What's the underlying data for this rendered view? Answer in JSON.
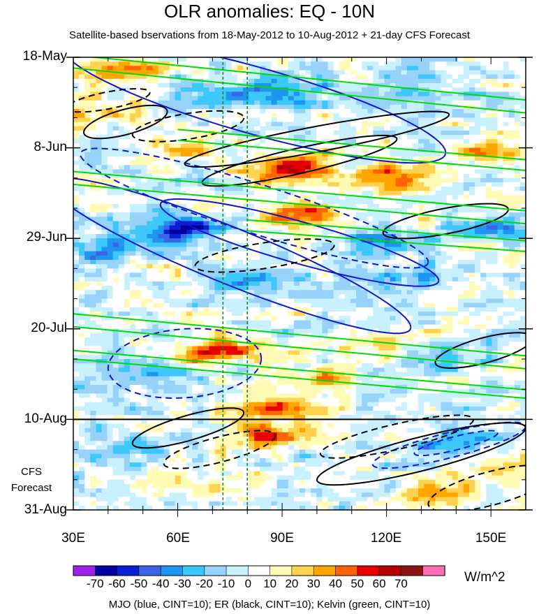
{
  "chart_data": {
    "type": "heatmap",
    "title": "OLR anomalies: EQ - 10N",
    "subtitle": "Satellite-based bservations from 18-May-2012 to 10-Aug-2012 + 21-day CFS Forecast",
    "x_axis": {
      "ticks": [
        {
          "value": 30,
          "label": "30E"
        },
        {
          "value": 60,
          "label": "60E"
        },
        {
          "value": 90,
          "label": "90E"
        },
        {
          "value": 120,
          "label": "120E"
        },
        {
          "value": 150,
          "label": "150E"
        }
      ],
      "range": [
        30,
        160
      ],
      "unit": "degrees longitude east"
    },
    "y_axis": {
      "ticks": [
        {
          "value": 0,
          "label": "18-May"
        },
        {
          "value": 21,
          "label": "8-Jun"
        },
        {
          "value": 42,
          "label": "29-Jun"
        },
        {
          "value": 63,
          "label": "20-Jul"
        },
        {
          "value": 84,
          "label": "10-Aug"
        },
        {
          "value": 105,
          "label": "31-Aug"
        }
      ],
      "range": [
        0,
        105
      ],
      "unit": "days since 18-May-2012"
    },
    "forecast_label_lines": [
      "CFS",
      "Forecast"
    ],
    "forecast_start_day": 84,
    "reference_lines_lon": [
      73,
      80
    ],
    "colorbar": {
      "levels": [
        -70,
        -60,
        -50,
        -40,
        -30,
        -20,
        -10,
        0,
        10,
        20,
        30,
        40,
        50,
        60,
        70
      ],
      "labels": [
        "-70",
        "-60",
        "-50",
        "-40",
        "-30",
        "-20",
        "-10",
        "0",
        "10",
        "20",
        "30",
        "40",
        "50",
        "60",
        "70"
      ],
      "colors": [
        "#a020f0",
        "#0000a0",
        "#0a1ed2",
        "#3c64e6",
        "#1e96f0",
        "#3cc8fa",
        "#96d2fa",
        "#c8f0ff",
        "#ffffff",
        "#fffab4",
        "#ffd250",
        "#ffa500",
        "#ff6400",
        "#e60000",
        "#b40000",
        "#8c1414",
        "#ff6eb4"
      ],
      "unit": "W/m^2"
    },
    "anomaly_features": [
      {
        "lon": 33,
        "day": 12,
        "value": 30
      },
      {
        "lon": 45,
        "day": 3,
        "value": 30
      },
      {
        "lon": 70,
        "day": 8,
        "value": -30
      },
      {
        "lon": 90,
        "day": 9,
        "value": -40
      },
      {
        "lon": 125,
        "day": 6,
        "value": -30
      },
      {
        "lon": 60,
        "day": 21,
        "value": 30
      },
      {
        "lon": 92,
        "day": 26,
        "value": 60
      },
      {
        "lon": 122,
        "day": 28,
        "value": 40
      },
      {
        "lon": 150,
        "day": 22,
        "value": 30
      },
      {
        "lon": 95,
        "day": 37,
        "value": 50
      },
      {
        "lon": 62,
        "day": 40,
        "value": -50
      },
      {
        "lon": 40,
        "day": 44,
        "value": -40
      },
      {
        "lon": 118,
        "day": 43,
        "value": -40
      },
      {
        "lon": 150,
        "day": 40,
        "value": -30
      },
      {
        "lon": 82,
        "day": 52,
        "value": -30
      },
      {
        "lon": 130,
        "day": 52,
        "value": -30
      },
      {
        "lon": 72,
        "day": 68,
        "value": 50
      },
      {
        "lon": 118,
        "day": 66,
        "value": 30
      },
      {
        "lon": 100,
        "day": 75,
        "value": 30
      },
      {
        "lon": 88,
        "day": 81,
        "value": 40
      },
      {
        "lon": 56,
        "day": 74,
        "value": -20
      },
      {
        "lon": 140,
        "day": 70,
        "value": -20
      },
      {
        "lon": 85,
        "day": 88,
        "value": 40
      },
      {
        "lon": 140,
        "day": 90,
        "value": -30
      },
      {
        "lon": 135,
        "day": 101,
        "value": 30
      },
      {
        "lon": 155,
        "day": 95,
        "value": 30
      },
      {
        "lon": 70,
        "day": 100,
        "value": 30
      },
      {
        "lon": 45,
        "day": 92,
        "value": -20
      }
    ],
    "contours": {
      "mjo": {
        "name": "MJO",
        "color": "#1414d2",
        "cint": 10,
        "shapes": [
          {
            "lon": 82,
            "day": 10,
            "a_deg": 55,
            "b_day": 8,
            "tilt": 0.22,
            "sign": 1
          },
          {
            "lon": 75,
            "day": 46,
            "a_deg": 52,
            "b_day": 7,
            "tilt": 0.32,
            "sign": 1
          },
          {
            "lon": 95,
            "day": 43,
            "a_deg": 40,
            "b_day": 5,
            "tilt": 0.22,
            "sign": 1
          },
          {
            "lon": 82,
            "day": 35,
            "a_deg": 50,
            "b_day": 6,
            "tilt": 0.25,
            "sign": -1
          },
          {
            "lon": 62,
            "day": 71,
            "a_deg": 22,
            "b_day": 8,
            "tilt": -0.05,
            "sign": -1
          },
          {
            "lon": 138,
            "day": 90,
            "a_deg": 22,
            "b_day": 3,
            "tilt": -0.2,
            "sign": -1
          },
          {
            "lon": 140,
            "day": 89.5,
            "a_deg": 12,
            "b_day": 1.6,
            "tilt": -0.2,
            "sign": -1
          }
        ]
      },
      "er": {
        "name": "ER",
        "color": "#000000",
        "cint": 10,
        "shapes": [
          {
            "lon": 45,
            "day": 15,
            "a_deg": 12,
            "b_day": 3,
            "tilt": -0.2,
            "sign": 1
          },
          {
            "lon": 95,
            "day": 24,
            "a_deg": 28,
            "b_day": 3,
            "tilt": -0.18,
            "sign": 1
          },
          {
            "lon": 100,
            "day": 19,
            "a_deg": 38,
            "b_day": 3,
            "tilt": -0.15,
            "sign": 1
          },
          {
            "lon": 137,
            "day": 38,
            "a_deg": 18,
            "b_day": 3,
            "tilt": -0.15,
            "sign": 1
          },
          {
            "lon": 63,
            "day": 86,
            "a_deg": 16,
            "b_day": 3,
            "tilt": -0.22,
            "sign": 1
          },
          {
            "lon": 130,
            "day": 92,
            "a_deg": 30,
            "b_day": 4,
            "tilt": -0.2,
            "sign": 1
          },
          {
            "lon": 148,
            "day": 68,
            "a_deg": 14,
            "b_day": 3,
            "tilt": -0.2,
            "sign": 1
          },
          {
            "lon": 40,
            "day": 10,
            "a_deg": 12,
            "b_day": 2,
            "tilt": -0.15,
            "sign": -1
          },
          {
            "lon": 63,
            "day": 16,
            "a_deg": 16,
            "b_day": 3,
            "tilt": -0.12,
            "sign": -1
          },
          {
            "lon": 85,
            "day": 46,
            "a_deg": 20,
            "b_day": 3,
            "tilt": -0.12,
            "sign": -1
          },
          {
            "lon": 72,
            "day": 91,
            "a_deg": 16,
            "b_day": 3,
            "tilt": -0.2,
            "sign": -1
          },
          {
            "lon": 123,
            "day": 88,
            "a_deg": 22,
            "b_day": 3,
            "tilt": -0.18,
            "sign": -1
          },
          {
            "lon": 150,
            "day": 100,
            "a_deg": 18,
            "b_day": 4,
            "tilt": -0.2,
            "sign": -1
          }
        ]
      },
      "kelvin": {
        "name": "Kelvin",
        "color": "#00dc00",
        "cint": 10,
        "bands": [
          {
            "lon0": 30,
            "day0": 1,
            "slope_day_per_deg": 0.08,
            "width_day": 3
          },
          {
            "lon0": 60,
            "day0": 18,
            "slope_day_per_deg": 0.07,
            "width_day": 2.5
          },
          {
            "lon0": 30,
            "day0": 28,
            "slope_day_per_deg": 0.07,
            "width_day": 3
          },
          {
            "lon0": 80,
            "day0": 39,
            "slope_day_per_deg": 0.06,
            "width_day": 2.5
          },
          {
            "lon0": 30,
            "day0": 61,
            "slope_day_per_deg": 0.075,
            "width_day": 3
          },
          {
            "lon0": 30,
            "day0": 69,
            "slope_day_per_deg": 0.07,
            "width_day": 2
          }
        ]
      }
    },
    "footer": "MJO (blue, CINT=10); ER (black, CINT=10); Kelvin (green, CINT=10)"
  }
}
